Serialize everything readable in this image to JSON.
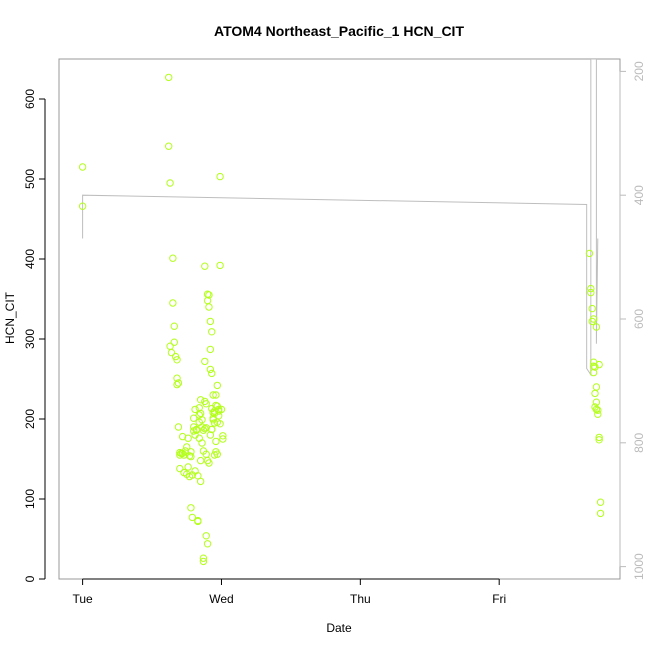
{
  "chart_data": {
    "type": "scatter",
    "title": "ATOM4 Northeast_Pacific_1 HCN_CIT",
    "xlabel": "Date",
    "ylabel": "HCN_CIT",
    "x_ticks": [
      "Tue",
      "Wed",
      "Thu",
      "Fri"
    ],
    "xlim_days": [
      -0.17,
      3.87
    ],
    "ylim": [
      0,
      650
    ],
    "y_ticks": [
      0,
      100,
      200,
      300,
      400,
      500,
      600
    ],
    "y2_ticks": [
      200,
      400,
      600,
      800,
      1000
    ],
    "y2lim_reversed": [
      1020,
      180
    ],
    "grid": false,
    "legend": "none",
    "colors": {
      "points": "#b3ff1a",
      "line": "#bebebe",
      "axis": "#000000",
      "right_axis": "#bbbbbb",
      "frame": "#999999"
    },
    "series": [
      {
        "type": "scatter",
        "x": [
          0.0,
          0.0,
          0.62,
          0.62,
          0.63,
          0.63,
          0.64,
          0.65,
          0.65,
          0.66,
          0.66,
          0.67,
          0.68,
          0.68,
          0.68,
          0.69,
          0.69,
          0.7,
          0.7,
          0.71,
          0.72,
          0.72,
          0.73,
          0.74,
          0.75,
          0.76,
          0.77,
          0.78,
          0.78,
          0.79,
          0.8,
          0.8,
          0.81,
          0.81,
          0.82,
          0.83,
          0.83,
          0.84,
          0.84,
          0.84,
          0.85,
          0.85,
          0.85,
          0.86,
          0.86,
          0.87,
          0.87,
          0.87,
          0.88,
          0.88,
          0.88,
          0.89,
          0.89,
          0.89,
          0.9,
          0.9,
          0.9,
          0.91,
          0.91,
          0.92,
          0.92,
          0.92,
          0.93,
          0.93,
          0.93,
          0.94,
          0.94,
          0.94,
          0.95,
          0.95,
          0.96,
          0.96,
          0.96,
          0.97,
          0.97,
          0.98,
          0.98,
          0.98,
          0.99,
          0.99,
          1.0,
          1.01,
          1.01,
          0.8,
          0.82,
          0.84,
          0.86,
          0.88,
          0.9,
          0.92,
          0.93,
          0.94,
          0.95,
          0.96,
          0.97,
          0.75,
          0.77,
          0.79,
          0.81,
          0.83,
          0.85,
          0.87,
          0.89,
          0.91,
          0.7,
          0.73,
          0.76,
          0.78,
          0.93,
          0.95,
          0.97,
          0.99,
          3.65,
          3.66,
          3.66,
          3.67,
          3.67,
          3.68,
          3.68,
          3.68,
          3.69,
          3.69,
          3.69,
          3.7,
          3.7,
          3.7,
          3.71,
          3.71,
          3.72,
          3.72,
          3.73,
          3.73,
          3.68,
          3.7,
          3.72
        ],
        "y": [
          515,
          466,
          627,
          541,
          495,
          291,
          283,
          401,
          345,
          316,
          296,
          278,
          274,
          251,
          243,
          190,
          245,
          158,
          138,
          157,
          157,
          178,
          133,
          160,
          165,
          140,
          128,
          159,
          89,
          77,
          185,
          201,
          212,
          180,
          187,
          73,
          72,
          214,
          205,
          196,
          224,
          207,
          122,
          199,
          190,
          186,
          26,
          22,
          391,
          272,
          222,
          219,
          189,
          54,
          44,
          348,
          356,
          355,
          340,
          262,
          322,
          287,
          309,
          257,
          213,
          230,
          208,
          201,
          155,
          207,
          217,
          159,
          172,
          242,
          216,
          204,
          210,
          212,
          503,
          392,
          212,
          179,
          175,
          190,
          186,
          176,
          170,
          188,
          148,
          180,
          187,
          199,
          210,
          230,
          156,
          131,
          154,
          130,
          135,
          129,
          148,
          160,
          156,
          145,
          155,
          155,
          176,
          153,
          187,
          195,
          196,
          194,
          407,
          363,
          358,
          338,
          322,
          271,
          258,
          266,
          265,
          232,
          215,
          240,
          221,
          212,
          211,
          206,
          174,
          177,
          96,
          82,
          325,
          315,
          268
        ],
        "style": "open-circle"
      },
      {
        "type": "line",
        "note": "secondary axis values (right, reversed)",
        "x": [
          0.0,
          0.0,
          3.63,
          3.63,
          3.66,
          3.66,
          3.7,
          3.7,
          3.71
        ],
        "y": [
          470,
          400,
          415,
          680,
          690,
          180,
          180,
          640,
          470
        ]
      }
    ]
  }
}
